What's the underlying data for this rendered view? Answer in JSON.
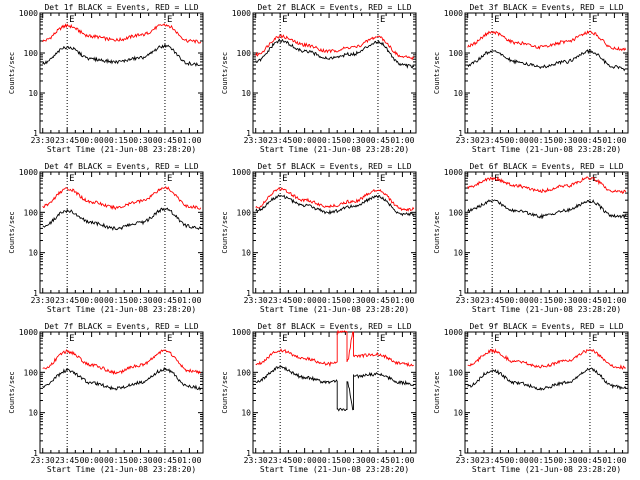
{
  "page": {
    "background": "#ffffff",
    "axis_color": "#000000"
  },
  "chart_data": [
    {
      "type": "line",
      "title": "Det 1f BLACK = Events, RED = LLD",
      "ylabel": "Counts/sec",
      "xlabel": "Start Time (21-Jun-08 23:28:20)",
      "yscale": "log",
      "ylim": [
        1,
        1000
      ],
      "y_ticks": [
        "1",
        "10",
        "100",
        "1000"
      ],
      "xlim": [
        "23:28:20",
        "01:08:20"
      ],
      "x_ticks": [
        "23:30",
        "23:45",
        "00:00",
        "00:15",
        "00:30",
        "00:45",
        "01:00"
      ],
      "markers": [
        {
          "label": "E",
          "time": "23:45"
        },
        {
          "label": "E",
          "time": "00:45"
        }
      ],
      "series": [
        {
          "color": "#ff0000",
          "x": [
            "23:30",
            "23:45",
            "00:00",
            "00:15",
            "00:30",
            "00:45",
            "01:00",
            "01:07"
          ],
          "values": [
            200,
            480,
            260,
            210,
            280,
            510,
            200,
            190
          ]
        },
        {
          "color": "#000000",
          "x": [
            "23:30",
            "23:45",
            "00:00",
            "00:15",
            "00:30",
            "00:45",
            "01:00",
            "01:07"
          ],
          "values": [
            55,
            140,
            70,
            60,
            75,
            150,
            55,
            50
          ]
        }
      ]
    },
    {
      "type": "line",
      "title": "Det 2f BLACK = Events, RED = LLD",
      "ylabel": "Counts/sec",
      "xlabel": "Start Time (21-Jun-08 23:28:20)",
      "yscale": "log",
      "ylim": [
        1,
        1000
      ],
      "y_ticks": [
        "1",
        "10",
        "100",
        "1000"
      ],
      "xlim": [
        "23:28:20",
        "01:08:20"
      ],
      "x_ticks": [
        "23:30",
        "23:45",
        "00:00",
        "00:15",
        "00:30",
        "00:45",
        "01:00"
      ],
      "markers": [
        {
          "label": "E",
          "time": "23:45"
        },
        {
          "label": "E",
          "time": "00:45"
        }
      ],
      "series": [
        {
          "color": "#ff0000",
          "x": [
            "23:30",
            "23:45",
            "00:00",
            "00:15",
            "00:30",
            "00:45",
            "01:00",
            "01:07"
          ],
          "values": [
            90,
            260,
            160,
            110,
            140,
            250,
            80,
            75
          ]
        },
        {
          "color": "#000000",
          "x": [
            "23:30",
            "23:45",
            "00:00",
            "00:15",
            "00:30",
            "00:45",
            "01:00",
            "01:07"
          ],
          "values": [
            60,
            200,
            110,
            75,
            95,
            190,
            50,
            45
          ]
        }
      ]
    },
    {
      "type": "line",
      "title": "Det 3f BLACK = Events, RED = LLD",
      "ylabel": "Counts/sec",
      "xlabel": "Start Time (21-Jun-08 23:28:20)",
      "yscale": "log",
      "ylim": [
        1,
        1000
      ],
      "y_ticks": [
        "1",
        "10",
        "100",
        "1000"
      ],
      "xlim": [
        "23:28:20",
        "01:08:20"
      ],
      "x_ticks": [
        "23:30",
        "23:45",
        "00:00",
        "00:15",
        "00:30",
        "00:45",
        "01:00"
      ],
      "markers": [
        {
          "label": "E",
          "time": "23:45"
        },
        {
          "label": "E",
          "time": "00:45"
        }
      ],
      "series": [
        {
          "color": "#ff0000",
          "x": [
            "23:30",
            "23:45",
            "00:00",
            "00:15",
            "00:30",
            "00:45",
            "01:00",
            "01:07"
          ],
          "values": [
            150,
            330,
            180,
            140,
            190,
            330,
            130,
            120
          ]
        },
        {
          "color": "#000000",
          "x": [
            "23:30",
            "23:45",
            "00:00",
            "00:15",
            "00:30",
            "00:45",
            "01:00",
            "01:07"
          ],
          "values": [
            50,
            110,
            60,
            45,
            60,
            110,
            45,
            40
          ]
        }
      ]
    },
    {
      "type": "line",
      "title": "Det 4f BLACK = Events, RED = LLD",
      "ylabel": "Counts/sec",
      "xlabel": "Start Time (21-Jun-08 23:28:20)",
      "yscale": "log",
      "ylim": [
        1,
        1000
      ],
      "y_ticks": [
        "1",
        "10",
        "100",
        "1000"
      ],
      "xlim": [
        "23:28:20",
        "01:08:20"
      ],
      "x_ticks": [
        "23:30",
        "23:45",
        "00:00",
        "00:15",
        "00:30",
        "00:45",
        "01:00"
      ],
      "markers": [
        {
          "label": "E",
          "time": "23:45"
        },
        {
          "label": "E",
          "time": "00:45"
        }
      ],
      "series": [
        {
          "color": "#ff0000",
          "x": [
            "23:30",
            "23:45",
            "00:00",
            "00:15",
            "00:30",
            "00:45",
            "01:00",
            "01:07"
          ],
          "values": [
            140,
            380,
            180,
            130,
            190,
            400,
            140,
            130
          ]
        },
        {
          "color": "#000000",
          "x": [
            "23:30",
            "23:45",
            "00:00",
            "00:15",
            "00:30",
            "00:45",
            "01:00",
            "01:07"
          ],
          "values": [
            45,
            110,
            55,
            40,
            55,
            120,
            45,
            40
          ]
        }
      ]
    },
    {
      "type": "line",
      "title": "Det 5f BLACK = Events, RED = LLD",
      "ylabel": "Counts/sec",
      "xlabel": "Start Time (21-Jun-08 23:28:20)",
      "yscale": "log",
      "ylim": [
        1,
        1000
      ],
      "y_ticks": [
        "1",
        "10",
        "100",
        "1000"
      ],
      "xlim": [
        "23:28:20",
        "01:08:20"
      ],
      "x_ticks": [
        "23:30",
        "23:45",
        "00:00",
        "00:15",
        "00:30",
        "00:45",
        "01:00"
      ],
      "markers": [
        {
          "label": "E",
          "time": "23:45"
        },
        {
          "label": "E",
          "time": "00:45"
        }
      ],
      "series": [
        {
          "color": "#ff0000",
          "x": [
            "23:30",
            "23:45",
            "00:00",
            "00:15",
            "00:30",
            "00:45",
            "01:00",
            "01:07"
          ],
          "values": [
            130,
            380,
            200,
            140,
            190,
            360,
            120,
            120
          ]
        },
        {
          "color": "#000000",
          "x": [
            "23:30",
            "23:45",
            "00:00",
            "00:15",
            "00:30",
            "00:45",
            "01:00",
            "01:07"
          ],
          "values": [
            110,
            250,
            150,
            100,
            140,
            250,
            90,
            90
          ]
        }
      ]
    },
    {
      "type": "line",
      "title": "Det 6f BLACK = Events, RED = LLD",
      "ylabel": "Counts/sec",
      "xlabel": "Start Time (21-Jun-08 23:28:20)",
      "yscale": "log",
      "ylim": [
        1,
        1000
      ],
      "y_ticks": [
        "1",
        "10",
        "100",
        "1000"
      ],
      "xlim": [
        "23:28:20",
        "01:08:20"
      ],
      "x_ticks": [
        "23:30",
        "23:45",
        "00:00",
        "00:15",
        "00:30",
        "00:45",
        "01:00"
      ],
      "markers": [
        {
          "label": "E",
          "time": "23:45"
        },
        {
          "label": "E",
          "time": "00:45"
        }
      ],
      "series": [
        {
          "color": "#ff0000",
          "x": [
            "23:30",
            "23:45",
            "00:00",
            "00:15",
            "00:30",
            "00:45",
            "01:00",
            "01:07"
          ],
          "values": [
            420,
            700,
            450,
            340,
            450,
            700,
            330,
            320
          ]
        },
        {
          "color": "#000000",
          "x": [
            "23:30",
            "23:45",
            "00:00",
            "00:15",
            "00:30",
            "00:45",
            "01:00",
            "01:07"
          ],
          "values": [
            110,
            190,
            110,
            80,
            110,
            190,
            80,
            80
          ]
        }
      ]
    },
    {
      "type": "line",
      "title": "Det 7f BLACK = Events, RED = LLD",
      "ylabel": "Counts/sec",
      "xlabel": "Start Time (21-Jun-08 23:28:20)",
      "yscale": "log",
      "ylim": [
        1,
        1000
      ],
      "y_ticks": [
        "1",
        "10",
        "100",
        "1000"
      ],
      "xlim": [
        "23:28:20",
        "01:08:20"
      ],
      "x_ticks": [
        "23:30",
        "23:45",
        "00:00",
        "00:15",
        "00:30",
        "00:45",
        "01:00"
      ],
      "markers": [
        {
          "label": "E",
          "time": "23:45"
        },
        {
          "label": "E",
          "time": "00:45"
        }
      ],
      "series": [
        {
          "color": "#ff0000",
          "x": [
            "23:30",
            "23:45",
            "00:00",
            "00:15",
            "00:30",
            "00:45",
            "01:00",
            "01:07"
          ],
          "values": [
            120,
            330,
            150,
            100,
            150,
            340,
            110,
            100
          ]
        },
        {
          "color": "#000000",
          "x": [
            "23:30",
            "23:45",
            "00:00",
            "00:15",
            "00:30",
            "00:45",
            "01:00",
            "01:07"
          ],
          "values": [
            45,
            110,
            55,
            40,
            55,
            120,
            45,
            40
          ]
        }
      ]
    },
    {
      "type": "line",
      "title": "Det 8f BLACK = Events, RED = LLD",
      "ylabel": "Counts/sec",
      "xlabel": "Start Time (21-Jun-08 23:28:20)",
      "yscale": "log",
      "ylim": [
        1,
        1000
      ],
      "y_ticks": [
        "1",
        "10",
        "100",
        "1000"
      ],
      "xlim": [
        "23:28:20",
        "01:08:20"
      ],
      "x_ticks": [
        "23:30",
        "23:45",
        "00:00",
        "00:15",
        "00:30",
        "00:45",
        "01:00"
      ],
      "markers": [
        {
          "label": "E",
          "time": "23:45"
        },
        {
          "label": "E",
          "time": "00:45"
        }
      ],
      "series": [
        {
          "color": "#ff0000",
          "x": [
            "23:30",
            "23:45",
            "00:00",
            "00:15",
            "00:20",
            "00:20",
            "00:26",
            "00:26",
            "00:30",
            "00:30",
            "00:45",
            "01:00",
            "01:07"
          ],
          "values": [
            160,
            350,
            220,
            160,
            180,
            1000,
            1000,
            180,
            1000,
            250,
            280,
            160,
            150
          ]
        },
        {
          "color": "#000000",
          "x": [
            "23:30",
            "23:45",
            "00:00",
            "00:15",
            "00:20",
            "00:20",
            "00:26",
            "00:26",
            "00:30",
            "00:30",
            "00:45",
            "01:00",
            "01:07"
          ],
          "values": [
            60,
            130,
            75,
            55,
            60,
            12,
            12,
            60,
            12,
            80,
            90,
            55,
            50
          ]
        }
      ]
    },
    {
      "type": "line",
      "title": "Det 9f BLACK = Events, RED = LLD",
      "ylabel": "Counts/sec",
      "xlabel": "Start Time (21-Jun-08 23:28:20)",
      "yscale": "log",
      "ylim": [
        1,
        1000
      ],
      "y_ticks": [
        "1",
        "10",
        "100",
        "1000"
      ],
      "xlim": [
        "23:28:20",
        "01:08:20"
      ],
      "x_ticks": [
        "23:30",
        "23:45",
        "00:00",
        "00:15",
        "00:30",
        "00:45",
        "01:00"
      ],
      "markers": [
        {
          "label": "E",
          "time": "23:45"
        },
        {
          "label": "E",
          "time": "00:45"
        }
      ],
      "series": [
        {
          "color": "#ff0000",
          "x": [
            "23:30",
            "23:45",
            "00:00",
            "00:15",
            "00:30",
            "00:45",
            "01:00",
            "01:07"
          ],
          "values": [
            150,
            340,
            180,
            140,
            190,
            350,
            140,
            130
          ]
        },
        {
          "color": "#000000",
          "x": [
            "23:30",
            "23:45",
            "00:00",
            "00:15",
            "00:30",
            "00:45",
            "01:00",
            "01:07"
          ],
          "values": [
            45,
            110,
            55,
            40,
            55,
            120,
            45,
            40
          ]
        }
      ]
    }
  ]
}
